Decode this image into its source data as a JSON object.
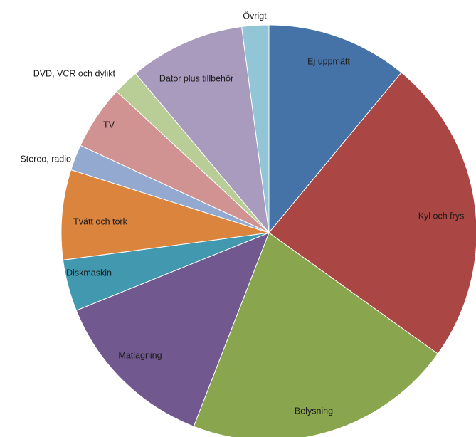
{
  "chart_data": {
    "type": "pie",
    "title": "",
    "start_angle_deg": 0,
    "direction": "clockwise",
    "slices": [
      {
        "label": "Ej uppmätt",
        "value": 11.0,
        "color": "#4572A7"
      },
      {
        "label": "Kyl och frys",
        "value": 23.9,
        "color": "#AA4643"
      },
      {
        "label": "Belysning",
        "value": 21.0,
        "color": "#89A54E"
      },
      {
        "label": "Matlagning",
        "value": 13.0,
        "color": "#71588F"
      },
      {
        "label": "Diskmaskin",
        "value": 4.0,
        "color": "#4198AF"
      },
      {
        "label": "Tvätt och tork",
        "value": 7.0,
        "color": "#DB843D"
      },
      {
        "label": "Stereo, radio",
        "value": 2.0,
        "color": "#93A9CF"
      },
      {
        "label": "TV",
        "value": 5.0,
        "color": "#D19392"
      },
      {
        "label": "DVD, VCR och dylikt",
        "value": 2.0,
        "color": "#B9CD96"
      },
      {
        "label": "Dator plus tillbehör",
        "value": 9.0,
        "color": "#A99BBD"
      },
      {
        "label": "Övrigt",
        "value": 2.1,
        "color": "#92C5D6"
      }
    ]
  }
}
